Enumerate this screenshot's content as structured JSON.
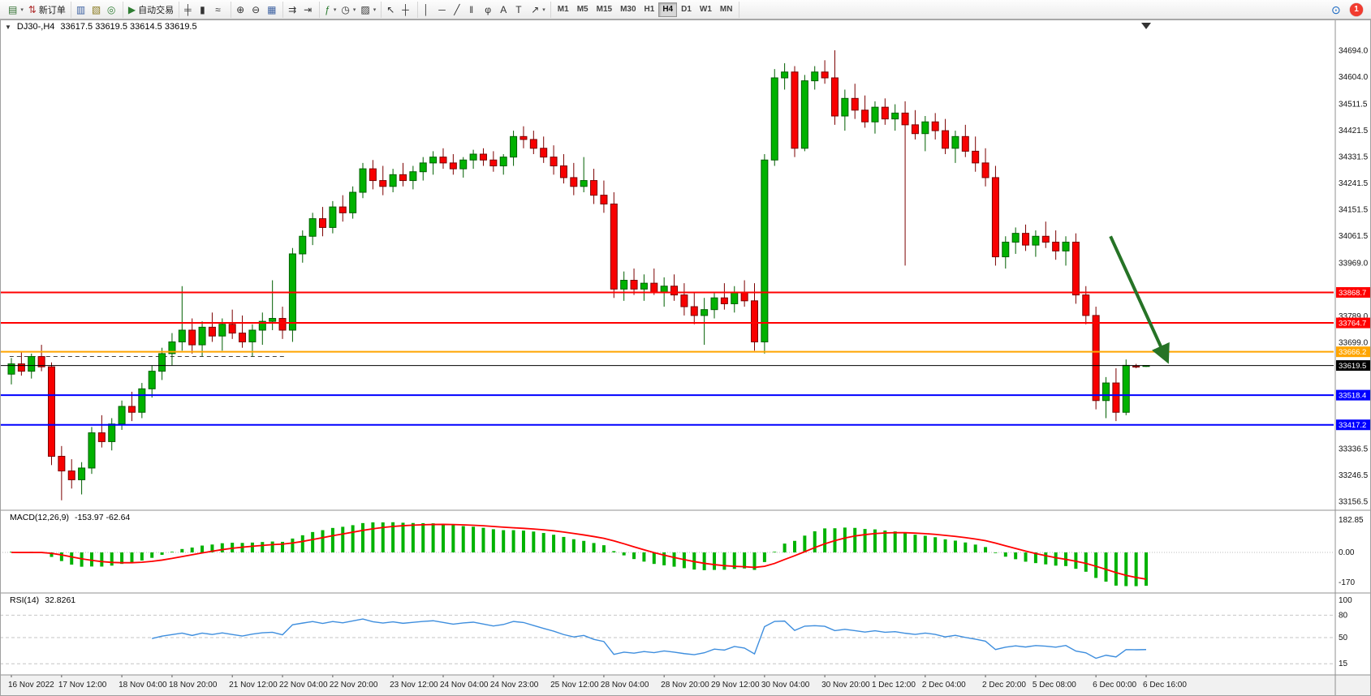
{
  "window": {
    "one_click_glyph": "▼",
    "symbol_period": "DJ30-,H4",
    "ohlc": "33617.5 33619.5 33614.5 33619.5"
  },
  "toolbar": {
    "groups": [
      {
        "items": [
          {
            "name": "new-chart",
            "glyph": "▤",
            "color": "#2f6f2f",
            "dropdown": true
          },
          {
            "name": "new-order",
            "glyph": "⇅",
            "color": "#b03030",
            "label": "新订单"
          }
        ]
      },
      {
        "items": [
          {
            "name": "market-watch",
            "glyph": "▥",
            "color": "#3a5fa0"
          },
          {
            "name": "data-window",
            "glyph": "▧",
            "color": "#8a7a20"
          },
          {
            "name": "navigator",
            "glyph": "◎",
            "color": "#2e7d32"
          }
        ]
      },
      {
        "items": [
          {
            "name": "auto-trading",
            "glyph": "▶",
            "color": "#2e7d32",
            "label": "自动交易"
          }
        ]
      },
      {
        "items": [
          {
            "name": "bar-chart-type",
            "glyph": "╪",
            "color": "#333333"
          },
          {
            "name": "candlestick-type",
            "glyph": "▮",
            "color": "#333333"
          },
          {
            "name": "line-chart-type",
            "glyph": "≈",
            "color": "#333333"
          }
        ]
      },
      {
        "items": [
          {
            "name": "zoom-in",
            "glyph": "⊕",
            "color": "#333333"
          },
          {
            "name": "zoom-out",
            "glyph": "⊖",
            "color": "#333333"
          },
          {
            "name": "tile-windows",
            "glyph": "▦",
            "color": "#3a5fa0"
          }
        ]
      },
      {
        "items": [
          {
            "name": "auto-scroll",
            "glyph": "⇉",
            "color": "#333333"
          },
          {
            "name": "chart-shift",
            "glyph": "⇥",
            "color": "#333333"
          }
        ]
      },
      {
        "items": [
          {
            "name": "indicators-list",
            "glyph": "ƒ",
            "color": "#2e7d32",
            "dropdown": true
          },
          {
            "name": "time-periods",
            "glyph": "◷",
            "color": "#333333",
            "dropdown": true
          },
          {
            "name": "templates",
            "glyph": "▨",
            "color": "#333333",
            "dropdown": true
          }
        ]
      },
      {
        "items": [
          {
            "name": "cursor",
            "glyph": "↖",
            "color": "#333333"
          },
          {
            "name": "crosshair",
            "glyph": "┼",
            "color": "#333333"
          }
        ]
      },
      {
        "items": [
          {
            "name": "vertical-line",
            "glyph": "│",
            "color": "#333333"
          },
          {
            "name": "horizontal-line",
            "glyph": "─",
            "color": "#333333"
          },
          {
            "name": "trendline",
            "glyph": "╱",
            "color": "#333333"
          },
          {
            "name": "equidistant-channel",
            "glyph": "‖",
            "color": "#333333"
          },
          {
            "name": "fibonacci",
            "glyph": "φ",
            "color": "#333333"
          },
          {
            "name": "text",
            "glyph": "A",
            "color": "#333333"
          },
          {
            "name": "text-label",
            "glyph": "T",
            "color": "#333333"
          },
          {
            "name": "arrow-objects",
            "glyph": "↗",
            "color": "#333333",
            "dropdown": true
          }
        ]
      }
    ],
    "timeframes": [
      {
        "label": "M1",
        "active": false
      },
      {
        "label": "M5",
        "active": false
      },
      {
        "label": "M15",
        "active": false
      },
      {
        "label": "M30",
        "active": false
      },
      {
        "label": "H1",
        "active": false
      },
      {
        "label": "H4",
        "active": true
      },
      {
        "label": "D1",
        "active": false
      },
      {
        "label": "W1",
        "active": false
      },
      {
        "label": "MN",
        "active": false
      }
    ],
    "right": {
      "community_glyph": "⊙",
      "notification_count": "1"
    }
  },
  "macd_panel": {
    "label": "MACD(12,26,9)",
    "values": "-153.97 -62.64",
    "axis_labels": [
      {
        "text": "182.85",
        "value": 182.85
      },
      {
        "text": "0.00",
        "value": 0
      },
      {
        "text": "-170",
        "value": -170
      }
    ]
  },
  "rsi_panel": {
    "label": "RSI(14)",
    "value": "32.8261",
    "axis_labels": [
      {
        "text": "100",
        "value": 100
      },
      {
        "text": "80",
        "value": 80
      },
      {
        "text": "50",
        "value": 50
      },
      {
        "text": "15",
        "value": 15
      }
    ],
    "levels": [
      80,
      50,
      15
    ]
  },
  "colors": {
    "bull": "#00B200",
    "bull_stroke": "#005f00",
    "bear": "#F80000",
    "bear_stroke": "#7c0000",
    "macd_hist": "#00B200",
    "macd_signal": "#FF0000",
    "rsi_line": "#3E8EDE",
    "level_dash": "#c6c6c6",
    "separator": "#909090",
    "axis_text": "#111111"
  },
  "chart_data": {
    "type": "candlestick",
    "title": "DJ30-,H4",
    "ohlc_current": {
      "open": 33617.5,
      "high": 33619.5,
      "low": 33614.5,
      "close": 33619.5
    },
    "ylim": [
      33156.5,
      34694.0
    ],
    "price_ticks": [
      34694.0,
      34604.0,
      34511.5,
      34421.5,
      34331.5,
      34241.5,
      34151.5,
      34061.5,
      33969.0,
      33789.0,
      33699.0,
      33336.5,
      33246.5,
      33156.5
    ],
    "time_labels": [
      "16 Nov 2022",
      "17 Nov 12:00",
      "18 Nov 04:00",
      "18 Nov 20:00",
      "21 Nov 12:00",
      "22 Nov 04:00",
      "22 Nov 20:00",
      "23 Nov 12:00",
      "24 Nov 04:00",
      "24 Nov 23:00",
      "25 Nov 12:00",
      "28 Nov 04:00",
      "28 Nov 20:00",
      "29 Nov 12:00",
      "30 Nov 04:00",
      "30 Nov 20:00",
      "1 Dec 12:00",
      "2 Dec 04:00",
      "2 Dec 20:00",
      "5 Dec 08:00",
      "6 Dec 00:00",
      "6 Dec 16:00"
    ],
    "hlines": [
      {
        "name": "resistance-line-upper",
        "price": 33868.7,
        "color": "#FF0000",
        "width": 2
      },
      {
        "name": "resistance-line-lower",
        "price": 33764.7,
        "color": "#FF0000",
        "width": 2
      },
      {
        "name": "pivot-line-orange",
        "price": 33666.2,
        "color": "#FFA500",
        "width": 2
      },
      {
        "name": "current-price-line",
        "price": 33619.5,
        "color": "#000000",
        "width": 1
      },
      {
        "name": "support-line-upper",
        "price": 33518.4,
        "color": "#0000FF",
        "width": 2
      },
      {
        "name": "support-line-lower",
        "price": 33417.2,
        "color": "#0000FF",
        "width": 2
      }
    ],
    "dashed_segment": {
      "price": 33650,
      "x_start_frac": 0.007,
      "x_end_frac": 0.208,
      "color": "#404040"
    },
    "arrow": {
      "from_x_frac": 0.81,
      "from_price": 34060,
      "to_x_frac": 0.851,
      "to_price": 33640,
      "color": "#267326"
    },
    "indicators": {
      "macd": {
        "fast": 12,
        "slow": 26,
        "signal": 9
      },
      "rsi": {
        "period": 14
      }
    },
    "candles": [
      [
        33590,
        33645,
        33555,
        33625
      ],
      [
        33625,
        33665,
        33585,
        33600
      ],
      [
        33600,
        33660,
        33575,
        33650
      ],
      [
        33650,
        33690,
        33600,
        33615
      ],
      [
        33615,
        33630,
        33280,
        33310
      ],
      [
        33310,
        33345,
        33160,
        33260
      ],
      [
        33260,
        33300,
        33200,
        33230
      ],
      [
        33230,
        33290,
        33180,
        33270
      ],
      [
        33270,
        33410,
        33250,
        33390
      ],
      [
        33390,
        33450,
        33340,
        33360
      ],
      [
        33360,
        33440,
        33330,
        33420
      ],
      [
        33420,
        33500,
        33400,
        33480
      ],
      [
        33480,
        33530,
        33430,
        33460
      ],
      [
        33460,
        33560,
        33440,
        33540
      ],
      [
        33540,
        33620,
        33510,
        33600
      ],
      [
        33600,
        33680,
        33570,
        33660
      ],
      [
        33660,
        33730,
        33620,
        33700
      ],
      [
        33700,
        33890,
        33670,
        33740
      ],
      [
        33740,
        33780,
        33660,
        33690
      ],
      [
        33690,
        33770,
        33650,
        33750
      ],
      [
        33750,
        33800,
        33700,
        33720
      ],
      [
        33720,
        33780,
        33670,
        33760
      ],
      [
        33760,
        33810,
        33710,
        33730
      ],
      [
        33730,
        33790,
        33680,
        33700
      ],
      [
        33700,
        33760,
        33650,
        33740
      ],
      [
        33740,
        33800,
        33690,
        33770
      ],
      [
        33770,
        33910,
        33740,
        33780
      ],
      [
        33780,
        33820,
        33710,
        33740
      ],
      [
        33740,
        34020,
        33700,
        34000
      ],
      [
        34000,
        34080,
        33970,
        34060
      ],
      [
        34060,
        34140,
        34030,
        34120
      ],
      [
        34120,
        34160,
        34060,
        34090
      ],
      [
        34090,
        34180,
        34070,
        34160
      ],
      [
        34160,
        34200,
        34110,
        34140
      ],
      [
        34140,
        34230,
        34120,
        34210
      ],
      [
        34210,
        34310,
        34190,
        34290
      ],
      [
        34290,
        34320,
        34220,
        34250
      ],
      [
        34250,
        34300,
        34200,
        34230
      ],
      [
        34230,
        34290,
        34210,
        34270
      ],
      [
        34270,
        34310,
        34230,
        34250
      ],
      [
        34250,
        34300,
        34220,
        34280
      ],
      [
        34280,
        34330,
        34250,
        34310
      ],
      [
        34310,
        34350,
        34270,
        34330
      ],
      [
        34330,
        34360,
        34290,
        34310
      ],
      [
        34310,
        34340,
        34270,
        34290
      ],
      [
        34290,
        34330,
        34260,
        34320
      ],
      [
        34320,
        34355,
        34290,
        34340
      ],
      [
        34340,
        34360,
        34300,
        34320
      ],
      [
        34320,
        34350,
        34280,
        34300
      ],
      [
        34300,
        34340,
        34270,
        34330
      ],
      [
        34330,
        34420,
        34300,
        34400
      ],
      [
        34400,
        34435,
        34360,
        34390
      ],
      [
        34390,
        34420,
        34340,
        34360
      ],
      [
        34360,
        34400,
        34310,
        34330
      ],
      [
        34330,
        34370,
        34270,
        34300
      ],
      [
        34300,
        34340,
        34240,
        34260
      ],
      [
        34260,
        34310,
        34200,
        34230
      ],
      [
        34230,
        34330,
        34210,
        34250
      ],
      [
        34250,
        34290,
        34170,
        34200
      ],
      [
        34200,
        34250,
        34140,
        34170
      ],
      [
        34170,
        34210,
        33850,
        33880
      ],
      [
        33880,
        33940,
        33840,
        33910
      ],
      [
        33910,
        33950,
        33860,
        33880
      ],
      [
        33880,
        33930,
        33840,
        33900
      ],
      [
        33900,
        33950,
        33860,
        33870
      ],
      [
        33870,
        33920,
        33820,
        33890
      ],
      [
        33890,
        33930,
        33840,
        33860
      ],
      [
        33860,
        33900,
        33790,
        33820
      ],
      [
        33820,
        33870,
        33760,
        33790
      ],
      [
        33790,
        33850,
        33690,
        33810
      ],
      [
        33810,
        33870,
        33780,
        33850
      ],
      [
        33850,
        33900,
        33810,
        33830
      ],
      [
        33830,
        33890,
        33800,
        33870
      ],
      [
        33870,
        33910,
        33820,
        33840
      ],
      [
        33840,
        33900,
        33670,
        33700
      ],
      [
        33700,
        34340,
        33660,
        34320
      ],
      [
        34320,
        34630,
        34300,
        34600
      ],
      [
        34600,
        34650,
        34560,
        34620
      ],
      [
        34620,
        34640,
        34330,
        34360
      ],
      [
        34360,
        34610,
        34350,
        34590
      ],
      [
        34590,
        34640,
        34560,
        34620
      ],
      [
        34620,
        34660,
        34580,
        34600
      ],
      [
        34600,
        34694,
        34440,
        34470
      ],
      [
        34470,
        34560,
        34420,
        34530
      ],
      [
        34530,
        34580,
        34460,
        34490
      ],
      [
        34490,
        34540,
        34430,
        34450
      ],
      [
        34450,
        34520,
        34410,
        34500
      ],
      [
        34500,
        34530,
        34440,
        34460
      ],
      [
        34460,
        34510,
        34420,
        34480
      ],
      [
        34480,
        34520,
        33960,
        34440
      ],
      [
        34440,
        34490,
        34390,
        34410
      ],
      [
        34410,
        34470,
        34350,
        34450
      ],
      [
        34450,
        34480,
        34390,
        34420
      ],
      [
        34420,
        34460,
        34340,
        34360
      ],
      [
        34360,
        34420,
        34310,
        34400
      ],
      [
        34400,
        34440,
        34330,
        34350
      ],
      [
        34350,
        34400,
        34280,
        34310
      ],
      [
        34310,
        34360,
        34230,
        34260
      ],
      [
        34260,
        34300,
        33960,
        33990
      ],
      [
        33990,
        34060,
        33950,
        34040
      ],
      [
        34040,
        34090,
        34000,
        34070
      ],
      [
        34070,
        34100,
        34010,
        34030
      ],
      [
        34030,
        34080,
        33990,
        34060
      ],
      [
        34060,
        34110,
        34020,
        34040
      ],
      [
        34040,
        34080,
        33980,
        34010
      ],
      [
        34010,
        34060,
        33960,
        34040
      ],
      [
        34040,
        34070,
        33830,
        33860
      ],
      [
        33860,
        33890,
        33760,
        33790
      ],
      [
        33790,
        33820,
        33470,
        33500
      ],
      [
        33500,
        33580,
        33440,
        33560
      ],
      [
        33560,
        33610,
        33430,
        33460
      ],
      [
        33460,
        33640,
        33450,
        33620
      ],
      [
        33617.5,
        33625,
        33610,
        33615
      ],
      [
        33617.5,
        33619.5,
        33614.5,
        33619.5
      ]
    ]
  }
}
